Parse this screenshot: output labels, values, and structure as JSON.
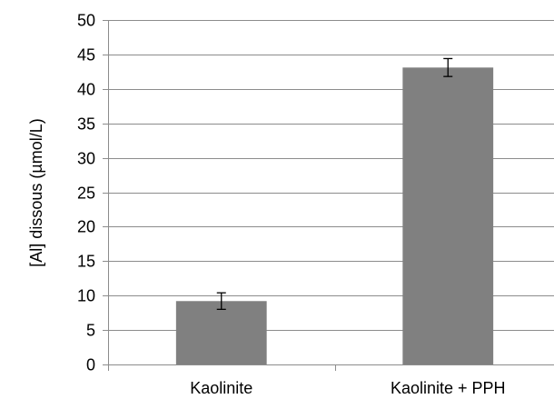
{
  "chart_data": {
    "type": "bar",
    "title": "",
    "xlabel": "",
    "ylabel": "[Al] dissous  (µmol/L)",
    "categories": [
      "Kaolinite",
      "Kaolinite + PPH"
    ],
    "values": [
      9.2,
      43.1
    ],
    "errors": [
      1.2,
      1.3
    ],
    "ylim": [
      0,
      50
    ],
    "yticks": [
      "0",
      "5",
      "10",
      "15",
      "20",
      "25",
      "30",
      "35",
      "40",
      "45",
      "50"
    ],
    "ytick_values": [
      0,
      5,
      10,
      15,
      20,
      25,
      30,
      35,
      40,
      45,
      50
    ],
    "grid": true,
    "legend": "none",
    "colors": {
      "bar": "#808080",
      "grid": "#8c8c8c",
      "axis": "#8c8c8c",
      "error_bar": "#000000"
    }
  }
}
